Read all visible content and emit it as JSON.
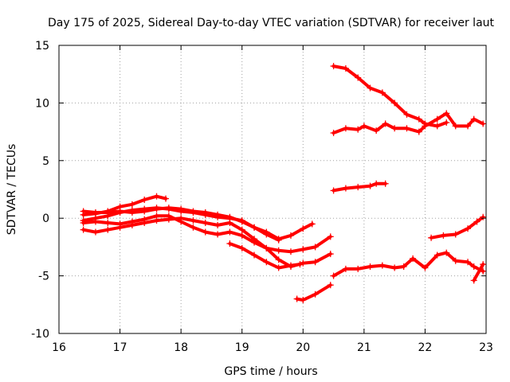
{
  "chart_data": {
    "type": "scatter",
    "title": "Day 175 of 2025, Sidereal Day-to-day VTEC variation (SDTVAR) for receiver laut",
    "xlabel": "GPS time / hours",
    "ylabel": "SDTVAR / TECUs",
    "xlim": [
      16,
      23
    ],
    "ylim": [
      -10,
      15
    ],
    "xticks": [
      "16",
      "17",
      "18",
      "19",
      "20",
      "21",
      "22",
      "23"
    ],
    "yticks": [
      "15",
      "10",
      "5",
      "0",
      "-5",
      "-10"
    ],
    "grid": true,
    "color": "#ff0000",
    "marker": "plus",
    "series": [
      {
        "name": "s1",
        "points": [
          [
            16.4,
            0.3
          ],
          [
            16.6,
            0.4
          ],
          [
            16.8,
            0.6
          ],
          [
            17.0,
            1.0
          ],
          [
            17.2,
            1.2
          ],
          [
            17.4,
            1.6
          ],
          [
            17.6,
            1.9
          ],
          [
            17.75,
            1.7
          ]
        ]
      },
      {
        "name": "s2",
        "points": [
          [
            16.4,
            -0.2
          ],
          [
            16.6,
            0.0
          ],
          [
            16.8,
            0.2
          ],
          [
            17.0,
            0.5
          ],
          [
            17.2,
            0.7
          ],
          [
            17.4,
            0.8
          ],
          [
            17.6,
            0.9
          ],
          [
            17.8,
            0.8
          ],
          [
            18.0,
            0.6
          ],
          [
            18.2,
            0.5
          ],
          [
            18.4,
            0.3
          ],
          [
            18.6,
            0.1
          ],
          [
            18.8,
            0.0
          ],
          [
            19.0,
            -0.2
          ],
          [
            19.2,
            -0.8
          ],
          [
            19.4,
            -1.2
          ],
          [
            19.6,
            -1.8
          ],
          [
            19.8,
            -1.5
          ],
          [
            20.0,
            -0.9
          ],
          [
            20.15,
            -0.5
          ]
        ]
      },
      {
        "name": "s3",
        "points": [
          [
            16.4,
            -1.0
          ],
          [
            16.6,
            -1.2
          ],
          [
            16.8,
            -1.0
          ],
          [
            17.0,
            -0.8
          ],
          [
            17.2,
            -0.6
          ],
          [
            17.4,
            -0.4
          ],
          [
            17.6,
            -0.2
          ],
          [
            17.8,
            -0.1
          ],
          [
            18.0,
            0.0
          ],
          [
            18.2,
            -0.2
          ],
          [
            18.4,
            -0.4
          ],
          [
            18.6,
            -0.6
          ],
          [
            18.8,
            -0.4
          ],
          [
            19.0,
            -1.0
          ],
          [
            19.2,
            -1.8
          ],
          [
            19.4,
            -2.6
          ],
          [
            19.6,
            -3.6
          ],
          [
            19.8,
            -4.2
          ],
          [
            20.0,
            -3.9
          ],
          [
            20.2,
            -3.8
          ],
          [
            20.45,
            -3.1
          ]
        ]
      },
      {
        "name": "s4",
        "points": [
          [
            16.4,
            -0.4
          ],
          [
            16.6,
            -0.3
          ],
          [
            16.8,
            -0.4
          ],
          [
            17.0,
            -0.5
          ],
          [
            17.2,
            -0.3
          ],
          [
            17.4,
            -0.1
          ],
          [
            17.6,
            0.2
          ],
          [
            17.8,
            0.2
          ],
          [
            18.0,
            -0.3
          ],
          [
            18.2,
            -0.8
          ],
          [
            18.4,
            -1.2
          ],
          [
            18.6,
            -1.4
          ],
          [
            18.8,
            -1.2
          ],
          [
            19.0,
            -1.5
          ],
          [
            19.2,
            -2.1
          ],
          [
            19.4,
            -2.6
          ],
          [
            19.6,
            -2.8
          ],
          [
            19.8,
            -2.9
          ],
          [
            20.0,
            -2.7
          ],
          [
            20.2,
            -2.5
          ],
          [
            20.45,
            -1.6
          ]
        ]
      },
      {
        "name": "s5",
        "points": [
          [
            16.4,
            0.6
          ],
          [
            16.6,
            0.5
          ],
          [
            16.8,
            0.5
          ],
          [
            17.0,
            0.6
          ],
          [
            17.2,
            0.5
          ],
          [
            17.4,
            0.6
          ],
          [
            17.6,
            0.8
          ],
          [
            17.8,
            0.9
          ],
          [
            18.0,
            0.8
          ],
          [
            18.2,
            0.6
          ],
          [
            18.4,
            0.5
          ],
          [
            18.6,
            0.3
          ],
          [
            18.8,
            0.1
          ],
          [
            19.0,
            -0.3
          ],
          [
            19.2,
            -0.8
          ],
          [
            19.4,
            -1.4
          ],
          [
            19.6,
            -1.9
          ]
        ]
      },
      {
        "name": "s6",
        "points": [
          [
            18.8,
            -2.2
          ],
          [
            19.0,
            -2.6
          ],
          [
            19.2,
            -3.2
          ],
          [
            19.4,
            -3.8
          ],
          [
            19.6,
            -4.3
          ],
          [
            19.8,
            -4.1
          ],
          [
            19.95,
            -4.0
          ]
        ]
      },
      {
        "name": "s7",
        "points": [
          [
            19.9,
            -7.0
          ],
          [
            20.0,
            -7.1
          ],
          [
            20.2,
            -6.6
          ],
          [
            20.45,
            -5.8
          ]
        ]
      },
      {
        "name": "s8",
        "points": [
          [
            20.5,
            13.2
          ],
          [
            20.7,
            13.0
          ],
          [
            20.9,
            12.2
          ],
          [
            21.1,
            11.3
          ],
          [
            21.3,
            10.9
          ],
          [
            21.5,
            10.0
          ],
          [
            21.7,
            9.0
          ],
          [
            21.9,
            8.6
          ],
          [
            22.0,
            8.2
          ],
          [
            22.2,
            8.0
          ],
          [
            22.35,
            8.3
          ]
        ]
      },
      {
        "name": "s9",
        "points": [
          [
            20.5,
            7.4
          ],
          [
            20.7,
            7.8
          ],
          [
            20.9,
            7.7
          ],
          [
            21.0,
            8.0
          ],
          [
            21.2,
            7.6
          ],
          [
            21.35,
            8.2
          ],
          [
            21.5,
            7.8
          ],
          [
            21.7,
            7.8
          ],
          [
            21.9,
            7.5
          ],
          [
            22.0,
            8.0
          ],
          [
            22.2,
            8.6
          ],
          [
            22.35,
            9.1
          ],
          [
            22.5,
            8.0
          ],
          [
            22.7,
            8.0
          ],
          [
            22.8,
            8.6
          ],
          [
            22.95,
            8.2
          ]
        ]
      },
      {
        "name": "s10",
        "points": [
          [
            20.5,
            2.4
          ],
          [
            20.7,
            2.6
          ],
          [
            20.9,
            2.7
          ],
          [
            21.1,
            2.8
          ],
          [
            21.2,
            3.0
          ],
          [
            21.35,
            3.0
          ]
        ]
      },
      {
        "name": "s11",
        "points": [
          [
            20.5,
            -5.0
          ],
          [
            20.7,
            -4.4
          ],
          [
            20.9,
            -4.4
          ],
          [
            21.1,
            -4.2
          ],
          [
            21.3,
            -4.1
          ],
          [
            21.5,
            -4.3
          ],
          [
            21.65,
            -4.2
          ],
          [
            21.8,
            -3.5
          ],
          [
            22.0,
            -4.3
          ],
          [
            22.2,
            -3.2
          ],
          [
            22.35,
            -3.0
          ],
          [
            22.5,
            -3.7
          ],
          [
            22.7,
            -3.8
          ],
          [
            22.8,
            -4.2
          ],
          [
            22.95,
            -4.6
          ]
        ]
      },
      {
        "name": "s12",
        "points": [
          [
            22.1,
            -1.7
          ],
          [
            22.3,
            -1.5
          ],
          [
            22.5,
            -1.4
          ],
          [
            22.7,
            -0.9
          ],
          [
            22.85,
            -0.3
          ],
          [
            22.95,
            0.1
          ]
        ]
      },
      {
        "name": "s13",
        "points": [
          [
            22.8,
            -5.4
          ],
          [
            22.95,
            -4.0
          ]
        ]
      }
    ]
  }
}
